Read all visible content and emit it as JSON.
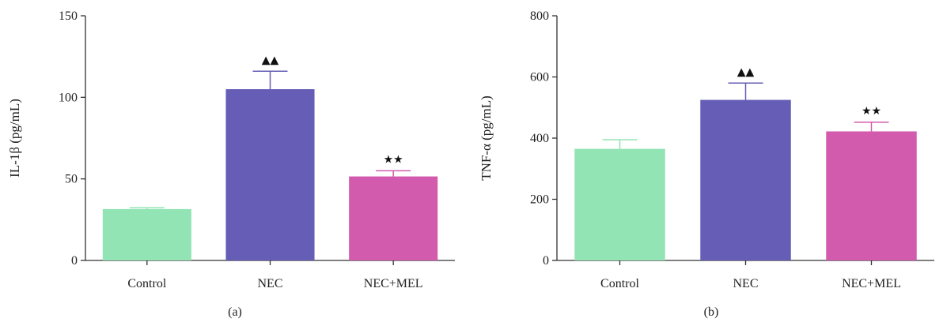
{
  "chart_data": [
    {
      "type": "bar",
      "panel_label": "(a)",
      "ylabel": "IL-1β (pg/mL)",
      "xlabel": "",
      "title": "",
      "categories": [
        "Control",
        "NEC",
        "NEC+MEL"
      ],
      "values": [
        31.5,
        105,
        51.5
      ],
      "error": [
        0.8,
        11,
        3.5
      ],
      "significance": [
        "",
        "▲▲",
        "★★"
      ],
      "ylim": [
        0,
        150
      ],
      "yticks": [
        0,
        50,
        100,
        150
      ],
      "colors": [
        "#93e4b4",
        "#655db6",
        "#d35bae"
      ],
      "grid": false,
      "legend": "none"
    },
    {
      "type": "bar",
      "panel_label": "(b)",
      "ylabel": "TNF-α (pg/mL)",
      "xlabel": "",
      "title": "",
      "categories": [
        "Control",
        "NEC",
        "NEC+MEL"
      ],
      "values": [
        365,
        525,
        422
      ],
      "error": [
        30,
        55,
        30
      ],
      "significance": [
        "",
        "▲▲",
        "★★"
      ],
      "ylim": [
        0,
        800
      ],
      "yticks": [
        0,
        200,
        400,
        600,
        800
      ],
      "colors": [
        "#93e4b4",
        "#655db6",
        "#d35bae"
      ],
      "grid": false,
      "legend": "none"
    }
  ]
}
